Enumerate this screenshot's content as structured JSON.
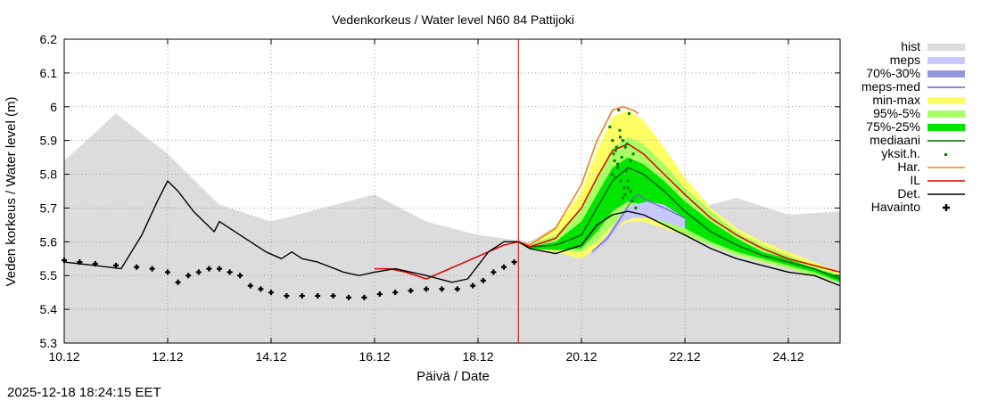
{
  "chart_data": {
    "type": "line",
    "title": "Vedenkorkeus / Water level   N60 84 Pattijoki",
    "xlabel": "Päivä / Date",
    "ylabel": "Veden korkeus / Water level (m)",
    "xlim": [
      0,
      15
    ],
    "ylim": [
      5.3,
      6.2
    ],
    "x_ticks": [
      {
        "x": 0,
        "label": "10.12"
      },
      {
        "x": 2,
        "label": "12.12"
      },
      {
        "x": 4,
        "label": "14.12"
      },
      {
        "x": 6,
        "label": "16.12"
      },
      {
        "x": 8,
        "label": "18.12"
      },
      {
        "x": 10,
        "label": "20.12"
      },
      {
        "x": 12,
        "label": "22.12"
      },
      {
        "x": 14,
        "label": "24.12"
      }
    ],
    "y_ticks": [
      {
        "y": 5.3,
        "label": "5.3"
      },
      {
        "y": 5.4,
        "label": "5.4"
      },
      {
        "y": 5.5,
        "label": "5.5"
      },
      {
        "y": 5.6,
        "label": "5.6"
      },
      {
        "y": 5.7,
        "label": "5.7"
      },
      {
        "y": 5.8,
        "label": "5.8"
      },
      {
        "y": 5.9,
        "label": "5.9"
      },
      {
        "y": 6.0,
        "label": "6"
      },
      {
        "y": 6.1,
        "label": "6.1"
      },
      {
        "y": 6.2,
        "label": "6.2"
      }
    ],
    "now_x": 8.78,
    "legend": [
      {
        "key": "hist",
        "label": "hist",
        "style": "box",
        "color": "#dcdcdc"
      },
      {
        "key": "meps",
        "label": "meps",
        "style": "box",
        "color": "#c8c8ff"
      },
      {
        "key": "meps7030",
        "label": "70%-30%",
        "style": "box",
        "color": "#9696dc"
      },
      {
        "key": "mepsmed",
        "label": "meps-med",
        "style": "line",
        "color": "#6464c8"
      },
      {
        "key": "minmax",
        "label": "min-max",
        "style": "box",
        "color": "#ffff64"
      },
      {
        "key": "p95",
        "label": "95%-5%",
        "style": "box",
        "color": "#aaff64"
      },
      {
        "key": "p75",
        "label": "75%-25%",
        "style": "box",
        "color": "#00e600"
      },
      {
        "key": "median",
        "label": "mediaani",
        "style": "line",
        "color": "#006400"
      },
      {
        "key": "members",
        "label": "yksit.h.",
        "style": "dot",
        "color": "#008000"
      },
      {
        "key": "har",
        "label": "Har.",
        "style": "line",
        "color": "#f08020"
      },
      {
        "key": "il",
        "label": "IL",
        "style": "line",
        "color": "#e00000"
      },
      {
        "key": "det",
        "label": "Det.",
        "style": "line",
        "color": "#000000"
      },
      {
        "key": "obs",
        "label": "Havainto",
        "style": "plus",
        "color": "#000000"
      }
    ],
    "series": {
      "hist_upper": {
        "x": [
          0,
          1,
          2,
          3,
          4,
          5,
          6,
          7,
          8,
          9,
          10,
          11,
          12,
          13,
          14,
          15
        ],
        "y": [
          5.84,
          5.98,
          5.86,
          5.71,
          5.66,
          5.7,
          5.74,
          5.66,
          5.62,
          5.6,
          5.69,
          5.76,
          5.69,
          5.73,
          5.68,
          5.69
        ]
      },
      "minmax": {
        "x": [
          9.0,
          9.5,
          10.0,
          10.3,
          10.6,
          10.9,
          11.2,
          11.6,
          12.0,
          12.5,
          13.0,
          13.5,
          14.0,
          14.5,
          15.0
        ],
        "upper": [
          5.59,
          5.64,
          5.75,
          5.87,
          5.97,
          5.99,
          5.96,
          5.88,
          5.79,
          5.7,
          5.64,
          5.6,
          5.57,
          5.54,
          5.51
        ],
        "lower": [
          5.58,
          5.57,
          5.55,
          5.58,
          5.63,
          5.66,
          5.66,
          5.64,
          5.62,
          5.6,
          5.56,
          5.54,
          5.52,
          5.5,
          5.48
        ]
      },
      "p95": {
        "x": [
          9.0,
          9.5,
          10.0,
          10.3,
          10.6,
          10.9,
          11.2,
          11.6,
          12.0,
          12.5,
          13.0,
          13.5,
          14.0,
          14.5,
          15.0
        ],
        "upper": [
          5.59,
          5.62,
          5.7,
          5.79,
          5.88,
          5.91,
          5.89,
          5.83,
          5.76,
          5.69,
          5.63,
          5.59,
          5.56,
          5.53,
          5.5
        ],
        "lower": [
          5.58,
          5.575,
          5.57,
          5.6,
          5.65,
          5.68,
          5.68,
          5.65,
          5.62,
          5.59,
          5.56,
          5.54,
          5.52,
          5.5,
          5.48
        ]
      },
      "p75": {
        "x": [
          9.0,
          9.5,
          10.0,
          10.3,
          10.6,
          10.9,
          11.2,
          11.6,
          12.0,
          12.5,
          13.0,
          13.5,
          14.0,
          14.5,
          15.0
        ],
        "upper": [
          5.585,
          5.6,
          5.66,
          5.74,
          5.82,
          5.85,
          5.83,
          5.78,
          5.72,
          5.66,
          5.61,
          5.57,
          5.55,
          5.52,
          5.5
        ],
        "lower": [
          5.58,
          5.575,
          5.58,
          5.63,
          5.69,
          5.72,
          5.71,
          5.68,
          5.64,
          5.6,
          5.57,
          5.55,
          5.53,
          5.51,
          5.48
        ]
      },
      "meps": {
        "x": [
          10.2,
          10.5,
          10.8,
          11.0,
          11.3,
          11.6,
          12.0
        ],
        "upper": [
          5.57,
          5.62,
          5.69,
          5.71,
          5.72,
          5.71,
          5.67
        ],
        "lower": [
          5.56,
          5.6,
          5.66,
          5.67,
          5.67,
          5.66,
          5.64
        ]
      },
      "meps_med": {
        "x": [
          10.2,
          10.5,
          10.8,
          11.0,
          11.1,
          11.3,
          11.6,
          12.0
        ],
        "y": [
          5.57,
          5.61,
          5.68,
          5.73,
          5.74,
          5.72,
          5.7,
          5.67
        ]
      },
      "median": {
        "x": [
          9.0,
          9.5,
          10.0,
          10.3,
          10.6,
          10.9,
          11.2,
          11.6,
          12.0,
          12.5,
          13.0,
          13.5,
          14.0,
          14.5,
          15.0
        ],
        "y": [
          5.585,
          5.59,
          5.62,
          5.7,
          5.78,
          5.82,
          5.8,
          5.75,
          5.69,
          5.63,
          5.59,
          5.56,
          5.54,
          5.52,
          5.49
        ]
      },
      "har": {
        "x": [
          8.78,
          9.0,
          9.5,
          10.0,
          10.3,
          10.6,
          10.8,
          11.0,
          11.1
        ],
        "y": [
          5.6,
          5.59,
          5.64,
          5.77,
          5.9,
          5.99,
          6.0,
          5.99,
          5.98
        ]
      },
      "il": {
        "x": [
          6.0,
          6.3,
          6.6,
          7.0,
          8.5,
          8.78,
          9.0,
          9.5,
          10.0,
          10.3,
          10.6,
          10.9,
          11.2,
          11.6,
          12.0,
          12.5,
          13.0,
          13.5,
          14.0,
          14.5,
          15.0
        ],
        "y": [
          5.52,
          5.52,
          5.51,
          5.49,
          5.59,
          5.6,
          5.585,
          5.61,
          5.7,
          5.79,
          5.87,
          5.89,
          5.86,
          5.8,
          5.74,
          5.67,
          5.62,
          5.58,
          5.55,
          5.53,
          5.51
        ]
      },
      "det": {
        "x": [
          0,
          0.6,
          1.1,
          1.5,
          1.8,
          2.0,
          2.2,
          2.5,
          2.9,
          3.0,
          3.2,
          3.6,
          3.9,
          4.2,
          4.4,
          4.6,
          4.9,
          5.4,
          5.7,
          6.0,
          6.4,
          7.0,
          7.5,
          7.8,
          8.0,
          8.2,
          8.5,
          8.78,
          9.0,
          9.5,
          10.0,
          10.3,
          10.6,
          10.9,
          11.2,
          11.6,
          12.0,
          12.5,
          13.0,
          13.5,
          14.0,
          14.5,
          15.0
        ],
        "y": [
          5.54,
          5.53,
          5.52,
          5.62,
          5.72,
          5.78,
          5.75,
          5.69,
          5.63,
          5.66,
          5.64,
          5.6,
          5.57,
          5.55,
          5.57,
          5.55,
          5.54,
          5.51,
          5.5,
          5.51,
          5.52,
          5.5,
          5.48,
          5.49,
          5.53,
          5.57,
          5.6,
          5.6,
          5.58,
          5.565,
          5.59,
          5.65,
          5.68,
          5.69,
          5.68,
          5.65,
          5.62,
          5.58,
          5.55,
          5.53,
          5.51,
          5.5,
          5.47
        ]
      },
      "observed": {
        "x": [
          0,
          0.3,
          0.6,
          1.0,
          1.4,
          1.7,
          2.0,
          2.2,
          2.4,
          2.6,
          2.8,
          3.0,
          3.2,
          3.4,
          3.6,
          3.8,
          4.0,
          4.3,
          4.6,
          4.9,
          5.2,
          5.5,
          5.8,
          6.1,
          6.4,
          6.7,
          7.0,
          7.3,
          7.6,
          7.9,
          8.1,
          8.3,
          8.5,
          8.7
        ],
        "y": [
          5.545,
          5.54,
          5.535,
          5.53,
          5.525,
          5.52,
          5.51,
          5.48,
          5.5,
          5.51,
          5.52,
          5.52,
          5.51,
          5.5,
          5.47,
          5.46,
          5.45,
          5.44,
          5.44,
          5.44,
          5.44,
          5.435,
          5.435,
          5.445,
          5.45,
          5.455,
          5.46,
          5.46,
          5.46,
          5.47,
          5.485,
          5.51,
          5.525,
          5.54
        ]
      },
      "members": {
        "x": [
          10.55,
          10.6,
          10.62,
          10.64,
          10.66,
          10.68,
          10.7,
          10.72,
          10.74,
          10.76,
          10.78,
          10.8,
          10.82,
          10.84,
          10.86,
          10.88,
          10.9,
          10.92,
          10.95,
          10.98,
          11.0,
          11.05,
          10.6,
          10.7,
          10.8,
          10.9,
          10.75,
          10.85,
          10.65,
          10.95
        ],
        "y": [
          5.94,
          5.9,
          5.86,
          5.84,
          5.87,
          5.88,
          5.82,
          5.99,
          5.93,
          5.78,
          5.85,
          5.9,
          5.76,
          5.74,
          5.81,
          5.89,
          5.78,
          5.98,
          5.75,
          5.72,
          5.86,
          5.7,
          5.8,
          5.83,
          5.73,
          5.76,
          5.91,
          5.88,
          5.79,
          5.84
        ]
      }
    }
  },
  "timestamp": "2025-12-18 18:24:15 EET"
}
